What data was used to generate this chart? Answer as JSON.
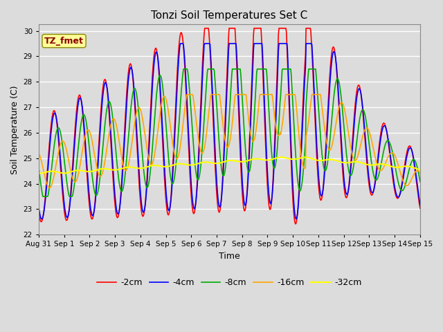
{
  "title": "Tonzi Soil Temperatures Set C",
  "xlabel": "Time",
  "ylabel": "Soil Temperature (C)",
  "ylim": [
    22.0,
    30.25
  ],
  "yticks": [
    22.0,
    23.0,
    24.0,
    25.0,
    26.0,
    27.0,
    28.0,
    29.0,
    30.0
  ],
  "xtick_labels": [
    "Aug 31",
    "Sep 1",
    "Sep 2",
    "Sep 3",
    "Sep 4",
    "Sep 5",
    "Sep 6",
    "Sep 7",
    "Sep 8",
    "Sep 9",
    "Sep 10",
    "Sep 11",
    "Sep 12",
    "Sep 13",
    "Sep 14",
    "Sep 15"
  ],
  "annotation_text": "TZ_fmet",
  "annotation_color": "#8B0000",
  "annotation_bg": "#FFFF99",
  "bg_color": "#DCDCDC",
  "series_colors": [
    "#FF0000",
    "#0000FF",
    "#00AA00",
    "#FFA500",
    "#FFFF00"
  ],
  "series_labels": [
    "-2cm",
    "-4cm",
    "-8cm",
    "-16cm",
    "-32cm"
  ],
  "figsize": [
    6.4,
    4.8
  ],
  "dpi": 100
}
